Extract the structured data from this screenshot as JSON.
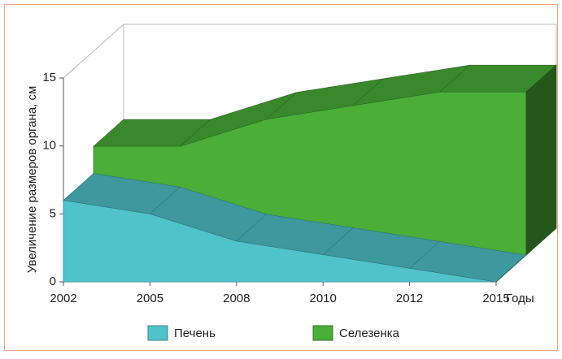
{
  "chart_data": {
    "type": "area3d",
    "y_label": "Увеличение размеров органа, см",
    "x_label": "Годы",
    "categories": [
      "2002",
      "2005",
      "2008",
      "2010",
      "2012",
      "2015"
    ],
    "series": [
      {
        "name": "Печень",
        "color": "#4fc3c9",
        "values": [
          6,
          5,
          3,
          2,
          1,
          0
        ]
      },
      {
        "name": "Селезенка",
        "color": "#4aae38",
        "values": [
          8,
          8,
          10,
          11,
          12,
          12
        ]
      }
    ],
    "ylim": [
      0,
      15
    ],
    "yticks": [
      0,
      5,
      10,
      15
    ]
  }
}
